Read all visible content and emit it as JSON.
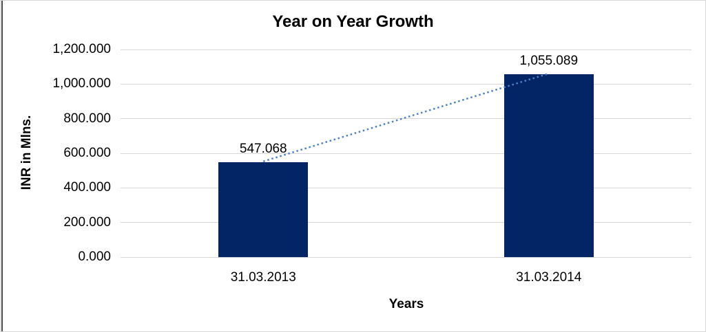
{
  "chart_data": {
    "type": "bar",
    "title": "Year on Year Growth",
    "xlabel": "Years",
    "ylabel": "INR in Mlns.",
    "categories": [
      "31.03.2013",
      "31.03.2014"
    ],
    "values": [
      547.068,
      1055.089
    ],
    "data_labels": [
      "547.068",
      "1,055.089"
    ],
    "ylim": [
      0,
      1200
    ],
    "yticks": [
      {
        "value": 0,
        "label": "0.000"
      },
      {
        "value": 200,
        "label": "200.000"
      },
      {
        "value": 400,
        "label": "400.000"
      },
      {
        "value": 600,
        "label": "600.000"
      },
      {
        "value": 800,
        "label": "800.000"
      },
      {
        "value": 1000,
        "label": "1,000.000"
      },
      {
        "value": 1200,
        "label": "1,200.000"
      }
    ],
    "grid": true,
    "legend": "none",
    "trendline": {
      "type": "linear",
      "style": "dotted",
      "from_category": 0,
      "to_category": 1
    },
    "colors": {
      "bar": "#032565",
      "trendline": "#4c80c8",
      "gridline": "#d6d6d6",
      "text": "#000000",
      "frame_border": "#d8d8d8",
      "left_accent": "#4a4a4a"
    }
  }
}
